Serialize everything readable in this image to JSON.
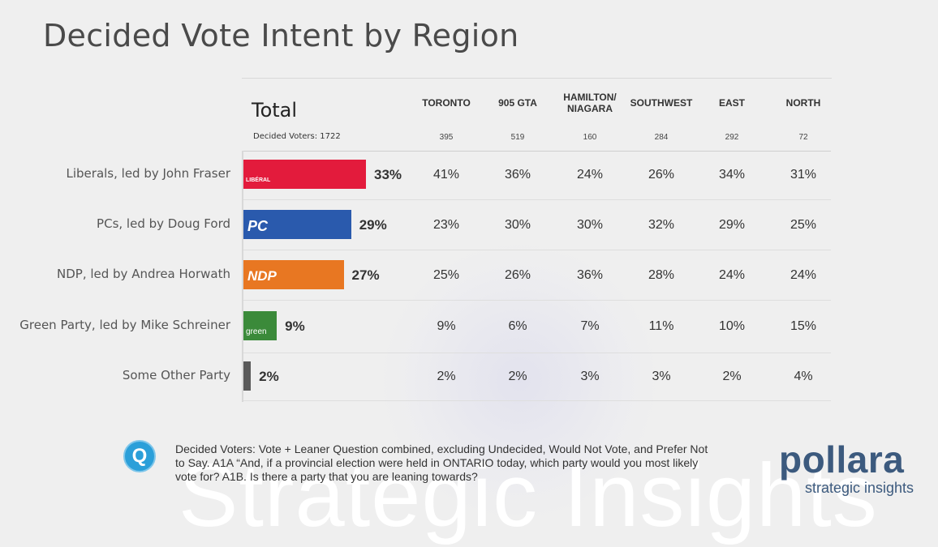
{
  "page": {
    "title": "Decided Vote Intent by Region",
    "total_label": "Total",
    "decided_voters_label": "Decided Voters: 1722",
    "watermark_text": "Strategic Insights"
  },
  "chart_data": {
    "type": "table",
    "title": "Decided Vote Intent by Region",
    "columns": [
      {
        "name": "TORONTO",
        "n": "395"
      },
      {
        "name": "905 GTA",
        "n": "519"
      },
      {
        "name": "HAMILTON/\nNIAGARA",
        "n": "160"
      },
      {
        "name": "SOUTHWEST",
        "n": "284"
      },
      {
        "name": "EAST",
        "n": "292"
      },
      {
        "name": "NORTH",
        "n": "72"
      }
    ],
    "rows": [
      {
        "label": "Liberals, led by John Fraser",
        "total": 33,
        "total_label": "33%",
        "color": "#e31b3c",
        "logo": "LIBÉRAL",
        "values": [
          "41%",
          "36%",
          "24%",
          "26%",
          "34%",
          "31%"
        ]
      },
      {
        "label": "PCs, led by Doug Ford",
        "total": 29,
        "total_label": "29%",
        "color": "#2a5aad",
        "logo": "PC",
        "values": [
          "23%",
          "30%",
          "30%",
          "32%",
          "29%",
          "25%"
        ]
      },
      {
        "label": "NDP, led by Andrea Horwath",
        "total": 27,
        "total_label": "27%",
        "color": "#e87722",
        "logo": "NDP",
        "values": [
          "25%",
          "26%",
          "36%",
          "28%",
          "24%",
          "24%"
        ]
      },
      {
        "label": "Green Party, led by Mike Schreiner",
        "total": 9,
        "total_label": "9%",
        "color": "#3b8a3a",
        "logo": "green",
        "values": [
          "9%",
          "6%",
          "7%",
          "11%",
          "10%",
          "15%"
        ]
      },
      {
        "label": "Some Other Party",
        "total": 2,
        "total_label": "2%",
        "color": "#5a5a5a",
        "logo": "",
        "values": [
          "2%",
          "2%",
          "3%",
          "3%",
          "2%",
          "4%"
        ]
      }
    ]
  },
  "footer": {
    "icon_letter": "Q",
    "note": "Decided Voters: Vote + Leaner Question combined, excluding Undecided, Would Not Vote, and Prefer Not to Say.  A1A “And, if a provincial election were held in ONTARIO today, which party would you most likely vote for? A1B. Is there a party that you are leaning towards?",
    "brand_name": "pollara",
    "brand_tagline": "strategic insights"
  }
}
